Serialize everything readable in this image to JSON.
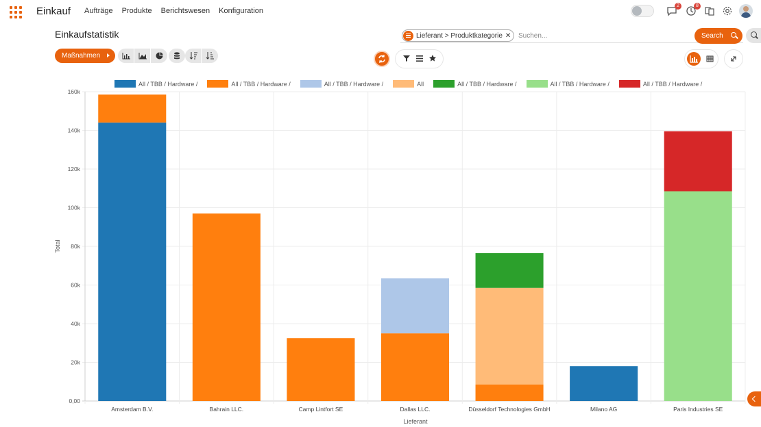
{
  "nav": {
    "app_title": "Einkauf",
    "menu": [
      "Aufträge",
      "Produkte",
      "Berichtswesen",
      "Konfiguration"
    ],
    "messages_badge": "2",
    "activities_badge": "8"
  },
  "control": {
    "page_title": "Einkaufstatistik",
    "facet_label": "Lieferant > Produktkategorie",
    "search_placeholder": "Suchen...",
    "search_button": "Search",
    "actions_label": "Maßnahmen"
  },
  "colors": {
    "accent": "#e8620e"
  },
  "chart_data": {
    "type": "bar",
    "stacked": true,
    "xlabel": "Lieferant",
    "ylabel": "Total",
    "ylim": [
      0,
      160000
    ],
    "y_ticks": [
      "0,00",
      "20k",
      "40k",
      "60k",
      "80k",
      "100k",
      "120k",
      "140k",
      "160k"
    ],
    "categories": [
      "Amsterdam B.V.",
      "Bahrain LLC.",
      "Camp Lintfort SE",
      "Dallas LLC.",
      "Düsseldorf Technologies GmbH",
      "Milano AG",
      "Paris Industries SE"
    ],
    "grid": true,
    "legend_position": "top",
    "series": [
      {
        "name": "All / TBB / Hardware /",
        "color": "#1f77b4",
        "values": [
          144000,
          0,
          0,
          0,
          0,
          18000,
          0
        ]
      },
      {
        "name": "All / TBB / Hardware /",
        "color": "#ff7f0e",
        "values": [
          14500,
          97000,
          32500,
          35000,
          8500,
          0,
          0
        ]
      },
      {
        "name": "All / TBB / Hardware /",
        "color": "#aec7e8",
        "values": [
          0,
          0,
          0,
          28500,
          0,
          0,
          0
        ]
      },
      {
        "name": "All",
        "color": "#ffbb78",
        "values": [
          0,
          0,
          0,
          0,
          50000,
          0,
          0
        ]
      },
      {
        "name": "All / TBB / Hardware /",
        "color": "#2ca02c",
        "values": [
          0,
          0,
          0,
          0,
          18000,
          0,
          0
        ]
      },
      {
        "name": "All / TBB / Hardware /",
        "color": "#98df8a",
        "values": [
          0,
          0,
          0,
          0,
          0,
          0,
          108500
        ]
      },
      {
        "name": "All / TBB / Hardware /",
        "color": "#d62728",
        "values": [
          0,
          0,
          0,
          0,
          0,
          0,
          31000
        ]
      }
    ]
  }
}
